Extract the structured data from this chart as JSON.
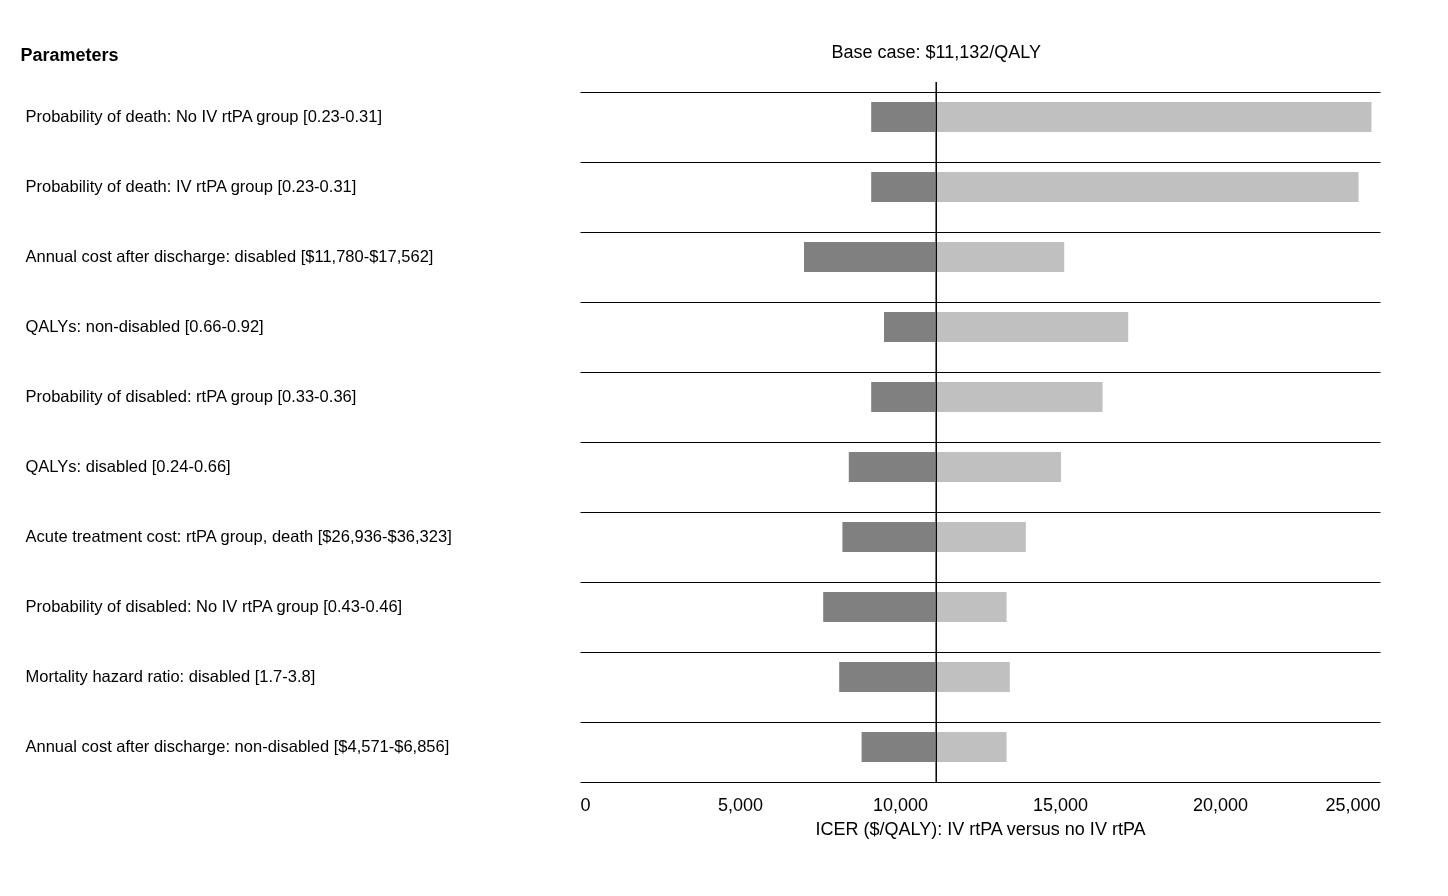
{
  "chart_data": {
    "type": "bar",
    "orientation": "horizontal",
    "ylabel": "Parameters",
    "xlabel": "ICER ($/QALY): IV rtPA versus no IV rtPA",
    "categories": [
      "Probability of death: No IV rtPA group [0.23-0.31]",
      "Probability of death: IV rtPA group [0.23-0.31]",
      "Annual cost after discharge: disabled [$11,780-$17,562]",
      "QALYs: non-disabled [0.66-0.92]",
      "Probability of disabled: rtPA group [0.33-0.36]",
      "QALYs: disabled [0.24-0.66]",
      "Acute treatment cost: rtPA group, death [$26,936-$36,323]",
      "Probability of disabled: No IV rtPA group [0.43-0.46]",
      "Mortality hazard ratio: disabled [1.7-3.8]",
      "Annual cost after discharge: non-disabled [$4,571-$6,856]"
    ],
    "series": [
      {
        "color": "#808080",
        "base": [
          9100,
          9100,
          7000,
          9500,
          9100,
          8400,
          8200,
          7600,
          8100,
          8800
        ],
        "values": [
          2000,
          2000,
          4100,
          1600,
          2000,
          2700,
          2900,
          3500,
          3000,
          2300
        ]
      },
      {
        "color": "#c0c0c0",
        "base": [
          11132,
          11132,
          11132,
          11132,
          11132,
          11132,
          11132,
          11132,
          11132,
          11132
        ],
        "values": [
          13600,
          13200,
          4000,
          6000,
          5200,
          3900,
          2800,
          2200,
          2300,
          2200
        ]
      }
    ],
    "xlim": [
      0,
      25000
    ],
    "xticks": [
      {
        "value": 0,
        "label": "0"
      },
      {
        "value": 5000,
        "label": "5,000"
      },
      {
        "value": 10000,
        "label": "10,000"
      },
      {
        "value": 15000,
        "label": "15,000"
      },
      {
        "value": 20000,
        "label": "20,000"
      },
      {
        "value": 25000,
        "label": "25,000"
      }
    ],
    "ref_lines": [
      {
        "axis": "x",
        "value": 11132,
        "label": "Base case: $11,132/QALY",
        "color": "#000000"
      }
    ],
    "grid": "y",
    "legend": false
  }
}
